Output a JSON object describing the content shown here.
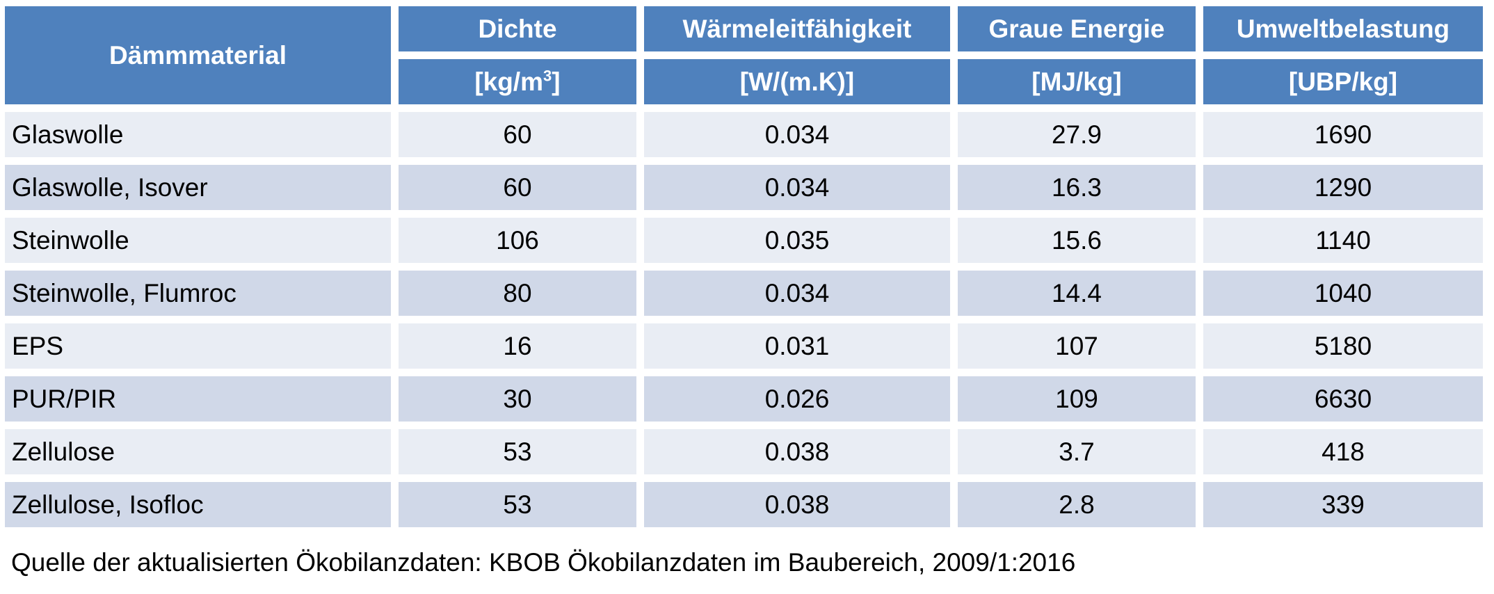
{
  "chart_data": {
    "type": "table",
    "columns": [
      {
        "name": "Dämmmaterial",
        "unit": ""
      },
      {
        "name": "Dichte",
        "unit_base": "[kg/m",
        "unit_sup": "3",
        "unit_tail": "]"
      },
      {
        "name": "Wärmeleitfähigkeit",
        "unit": "[W/(m.K)]"
      },
      {
        "name": "Graue Energie",
        "unit": "[MJ/kg]"
      },
      {
        "name": "Umweltbelastung",
        "unit": "[UBP/kg]"
      }
    ],
    "rows": [
      {
        "material": "Glaswolle",
        "dichte": "60",
        "waermeleitfaehigkeit": "0.034",
        "graue_energie": "27.9",
        "umweltbelastung": "1690"
      },
      {
        "material": "Glaswolle, Isover",
        "dichte": "60",
        "waermeleitfaehigkeit": "0.034",
        "graue_energie": "16.3",
        "umweltbelastung": "1290"
      },
      {
        "material": "Steinwolle",
        "dichte": "106",
        "waermeleitfaehigkeit": "0.035",
        "graue_energie": "15.6",
        "umweltbelastung": "1140"
      },
      {
        "material": "Steinwolle, Flumroc",
        "dichte": "80",
        "waermeleitfaehigkeit": "0.034",
        "graue_energie": "14.4",
        "umweltbelastung": "1040"
      },
      {
        "material": "EPS",
        "dichte": "16",
        "waermeleitfaehigkeit": "0.031",
        "graue_energie": "107",
        "umweltbelastung": "5180"
      },
      {
        "material": "PUR/PIR",
        "dichte": "30",
        "waermeleitfaehigkeit": "0.026",
        "graue_energie": "109",
        "umweltbelastung": "6630"
      },
      {
        "material": "Zellulose",
        "dichte": "53",
        "waermeleitfaehigkeit": "0.038",
        "graue_energie": "3.7",
        "umweltbelastung": "418"
      },
      {
        "material": "Zellulose, Isofloc",
        "dichte": "53",
        "waermeleitfaehigkeit": "0.038",
        "graue_energie": "2.8",
        "umweltbelastung": "339"
      }
    ],
    "colors": {
      "header": "#4f81bd",
      "row_light": "#e9edf4",
      "row_dark": "#d0d8e8"
    }
  },
  "source_note": "Quelle der aktualisierten Ökobilanzdaten: KBOB Ökobilanzdaten im Baubereich, 2009/1:2016"
}
